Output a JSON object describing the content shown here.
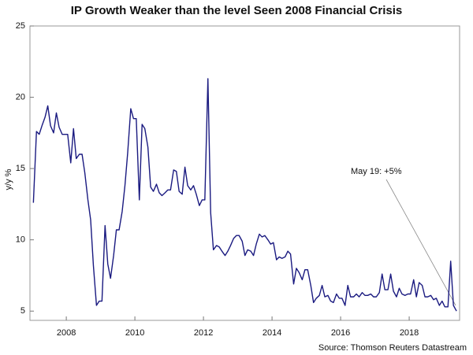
{
  "chart_data": {
    "type": "line",
    "title": "IP Growth Weaker than the level Seen 2008 Financial Crisis",
    "y_label": "y/y %",
    "source": "Source: Thomson Reuters Datastream",
    "annotation": "May 19: +5%",
    "xlim": [
      2006.94,
      2019.47
    ],
    "xticks": [
      2008,
      2010,
      2012,
      2014,
      2016,
      2018
    ],
    "ylim": [
      4.35,
      25
    ],
    "yticks": [
      5,
      10,
      15,
      20,
      25
    ],
    "grid": false,
    "x": [
      2007.04,
      2007.13,
      2007.21,
      2007.29,
      2007.38,
      2007.46,
      2007.54,
      2007.63,
      2007.71,
      2007.79,
      2007.88,
      2007.96,
      2008.04,
      2008.13,
      2008.21,
      2008.29,
      2008.38,
      2008.46,
      2008.54,
      2008.63,
      2008.71,
      2008.79,
      2008.88,
      2008.96,
      2009.04,
      2009.13,
      2009.21,
      2009.29,
      2009.38,
      2009.46,
      2009.54,
      2009.63,
      2009.71,
      2009.79,
      2009.88,
      2009.96,
      2010.04,
      2010.13,
      2010.21,
      2010.29,
      2010.38,
      2010.46,
      2010.54,
      2010.63,
      2010.71,
      2010.79,
      2010.88,
      2010.96,
      2011.04,
      2011.13,
      2011.21,
      2011.29,
      2011.38,
      2011.46,
      2011.54,
      2011.63,
      2011.71,
      2011.79,
      2011.88,
      2011.96,
      2012.04,
      2012.13,
      2012.21,
      2012.29,
      2012.38,
      2012.46,
      2012.54,
      2012.63,
      2012.71,
      2012.79,
      2012.88,
      2012.96,
      2013.04,
      2013.13,
      2013.21,
      2013.29,
      2013.38,
      2013.46,
      2013.54,
      2013.63,
      2013.71,
      2013.79,
      2013.88,
      2013.96,
      2014.04,
      2014.13,
      2014.21,
      2014.29,
      2014.38,
      2014.46,
      2014.54,
      2014.63,
      2014.71,
      2014.79,
      2014.88,
      2014.96,
      2015.04,
      2015.13,
      2015.21,
      2015.29,
      2015.38,
      2015.46,
      2015.54,
      2015.63,
      2015.71,
      2015.79,
      2015.88,
      2015.96,
      2016.04,
      2016.13,
      2016.21,
      2016.29,
      2016.38,
      2016.46,
      2016.54,
      2016.63,
      2016.71,
      2016.79,
      2016.88,
      2016.96,
      2017.04,
      2017.13,
      2017.21,
      2017.29,
      2017.38,
      2017.46,
      2017.54,
      2017.63,
      2017.71,
      2017.79,
      2017.88,
      2017.96,
      2018.04,
      2018.13,
      2018.21,
      2018.29,
      2018.38,
      2018.46,
      2018.54,
      2018.63,
      2018.71,
      2018.79,
      2018.88,
      2018.96,
      2019.04,
      2019.13,
      2019.21,
      2019.29,
      2019.38
    ],
    "series": [
      {
        "name": "IP growth",
        "color": "#1a1a80",
        "values": [
          12.6,
          17.6,
          17.4,
          18,
          18.6,
          19.4,
          18,
          17.5,
          18.9,
          17.9,
          17.4,
          17.4,
          17.4,
          15.4,
          17.8,
          15.7,
          16,
          16,
          14.7,
          12.8,
          11.4,
          8.2,
          5.4,
          5.7,
          5.7,
          11,
          8.3,
          7.3,
          8.9,
          10.7,
          10.7,
          12,
          13.8,
          16.1,
          19.2,
          18.5,
          18.5,
          12.8,
          18.1,
          17.8,
          16.5,
          13.7,
          13.4,
          13.9,
          13.3,
          13.1,
          13.3,
          13.5,
          13.5,
          14.9,
          14.8,
          13.4,
          13.2,
          15.1,
          13.8,
          13.5,
          13.8,
          13.2,
          12.4,
          12.8,
          12.8,
          21.3,
          11.9,
          9.3,
          9.6,
          9.5,
          9.2,
          8.9,
          9.2,
          9.6,
          10.1,
          10.3,
          10.3,
          9.9,
          8.9,
          9.3,
          9.2,
          8.9,
          9.7,
          10.4,
          10.2,
          10.3,
          10,
          9.7,
          9.8,
          8.6,
          8.8,
          8.7,
          8.8,
          9.2,
          9,
          6.9,
          8,
          7.7,
          7.2,
          7.9,
          7.9,
          6.8,
          5.6,
          5.9,
          6.1,
          6.8,
          6,
          6.1,
          5.7,
          5.6,
          6.2,
          5.9,
          5.9,
          5.4,
          6.8,
          6,
          6,
          6.2,
          6,
          6.3,
          6.1,
          6.1,
          6.2,
          6,
          6,
          6.3,
          7.6,
          6.5,
          6.5,
          7.6,
          6.4,
          6,
          6.6,
          6.2,
          6.1,
          6.2,
          6.2,
          7.2,
          6,
          7,
          6.8,
          6,
          6,
          6.1,
          5.8,
          5.9,
          5.4,
          5.7,
          5.3,
          5.3,
          8.5,
          5.4,
          5
        ]
      }
    ]
  }
}
